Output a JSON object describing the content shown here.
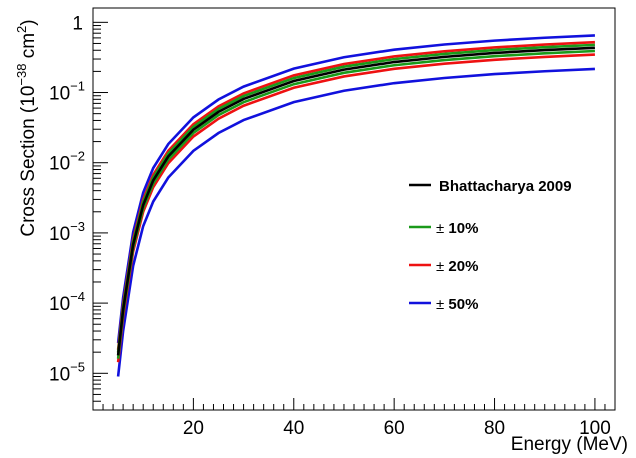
{
  "chart_data": {
    "type": "line",
    "xlabel": "Energy (MeV)",
    "ylabel_main": "Cross Section (10",
    "ylabel_exp": "−38",
    "ylabel_unit": " cm",
    "ylabel_unit_exp": "2",
    "ylabel_close": ")",
    "yscale": "log",
    "xlim": [
      0,
      104
    ],
    "ylim": [
      3e-06,
      1.6
    ],
    "x_ticks": [
      {
        "value": 20,
        "label": "20"
      },
      {
        "value": 40,
        "label": "40"
      },
      {
        "value": 60,
        "label": "60"
      },
      {
        "value": 80,
        "label": "80"
      },
      {
        "value": 100,
        "label": "100"
      }
    ],
    "y_ticks": [
      {
        "value": 1e-05,
        "base": "10",
        "exp": "−5"
      },
      {
        "value": 0.0001,
        "base": "10",
        "exp": "−4"
      },
      {
        "value": 0.001,
        "base": "10",
        "exp": "−3"
      },
      {
        "value": 0.01,
        "base": "10",
        "exp": "−2"
      },
      {
        "value": 0.1,
        "base": "10",
        "exp": "−1"
      },
      {
        "value": 1,
        "base": "1",
        "exp": ""
      }
    ],
    "x": [
      5,
      6,
      8,
      10,
      12,
      15,
      20,
      25,
      30,
      40,
      50,
      60,
      70,
      80,
      90,
      100
    ],
    "nominal": [
      1.8e-05,
      8e-05,
      0.00068,
      0.0025,
      0.0056,
      0.0123,
      0.0295,
      0.053,
      0.081,
      0.146,
      0.212,
      0.272,
      0.322,
      0.366,
      0.402,
      0.434
    ],
    "series": [
      {
        "name": "Bhattacharya 2009",
        "pm": "",
        "pct": "",
        "color": "#000000",
        "frac": 0
      },
      {
        "name": "",
        "pm": "±",
        "pct": "10%",
        "color": "#1a9a1a",
        "frac": 0.1
      },
      {
        "name": "",
        "pm": "±",
        "pct": "20%",
        "color": "#ee1111",
        "frac": 0.2
      },
      {
        "name": "",
        "pm": "±",
        "pct": "50%",
        "color": "#1111dd",
        "frac": 0.5
      }
    ],
    "legend_position": "right",
    "grid": false
  }
}
